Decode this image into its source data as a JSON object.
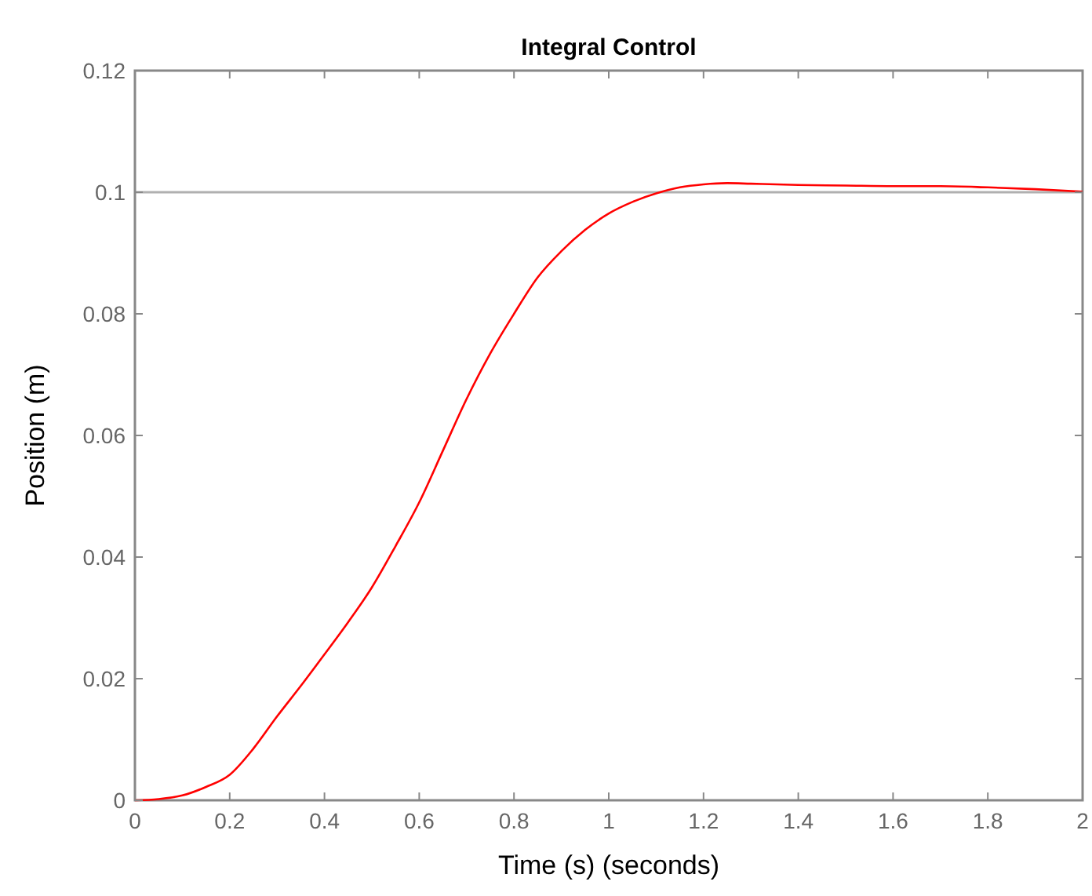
{
  "chart_data": {
    "type": "line",
    "title": "Integral Control",
    "xlabel": "Time (s) (seconds)",
    "ylabel": "Position (m)",
    "x": [
      0,
      0.05,
      0.1,
      0.15,
      0.2,
      0.25,
      0.3,
      0.35,
      0.4,
      0.45,
      0.5,
      0.55,
      0.6,
      0.65,
      0.7,
      0.75,
      0.8,
      0.85,
      0.9,
      0.95,
      1.0,
      1.05,
      1.1,
      1.15,
      1.2,
      1.25,
      1.3,
      1.4,
      1.5,
      1.6,
      1.7,
      1.8,
      1.9,
      2.0
    ],
    "series": [
      {
        "color": "#ff0000",
        "values": [
          0,
          0.0002,
          0.0008,
          0.0022,
          0.0042,
          0.0085,
          0.0138,
          0.0188,
          0.024,
          0.0293,
          0.035,
          0.0418,
          0.049,
          0.0575,
          0.066,
          0.0735,
          0.08,
          0.086,
          0.0903,
          0.0938,
          0.0965,
          0.0984,
          0.0998,
          0.1008,
          0.1013,
          0.1015,
          0.1014,
          0.1012,
          0.1011,
          0.101,
          0.101,
          0.1008,
          0.1005,
          0.1001
        ]
      }
    ],
    "xlim": [
      0,
      2
    ],
    "ylim": [
      0,
      0.12
    ],
    "xticks": [
      0,
      0.2,
      0.4,
      0.6,
      0.8,
      1,
      1.2,
      1.4,
      1.6,
      1.8,
      2
    ],
    "yticks": [
      0,
      0.02,
      0.04,
      0.06,
      0.08,
      0.1,
      0.12
    ],
    "ref_lines": [
      {
        "axis": "y",
        "value": 0.1,
        "color": "#b0b0b0"
      }
    ],
    "grid": false,
    "line_style": "solid"
  }
}
